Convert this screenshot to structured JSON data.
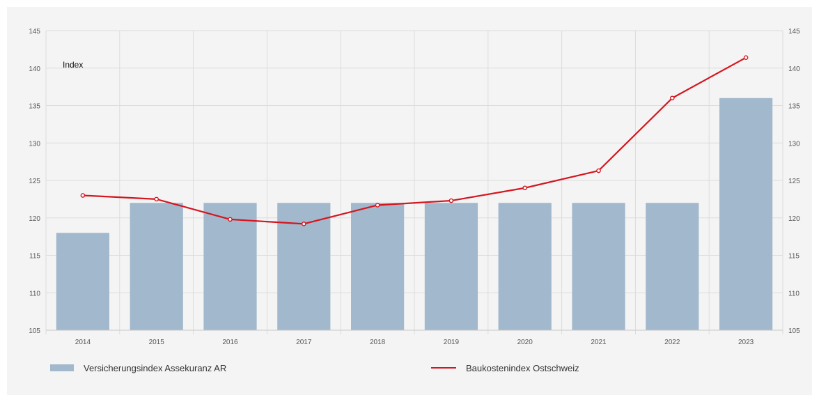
{
  "colors": {
    "bar": "#a2b8cc",
    "line": "#d4161f",
    "grid": "#dcdcdc",
    "tick_text": "#555555"
  },
  "chart_data": {
    "type": "bar",
    "categories": [
      "2014",
      "2015",
      "2016",
      "2017",
      "2018",
      "2019",
      "2020",
      "2021",
      "2022",
      "2023"
    ],
    "ylabel": "Index",
    "ylim": [
      105,
      145
    ],
    "yticks": [
      105,
      110,
      115,
      120,
      125,
      130,
      135,
      140,
      145
    ],
    "grid": true,
    "legend_position": "bottom",
    "series": [
      {
        "name": "Versicherungsindex Assekuranz AR",
        "type": "bar",
        "values": [
          118,
          122,
          122,
          122,
          122,
          122,
          122,
          122,
          122,
          136
        ]
      },
      {
        "name": "Baukostenindex Ostschweiz",
        "type": "line",
        "values": [
          123.0,
          122.5,
          119.8,
          119.2,
          121.7,
          122.3,
          124.0,
          126.3,
          136.0,
          141.4
        ]
      }
    ]
  }
}
